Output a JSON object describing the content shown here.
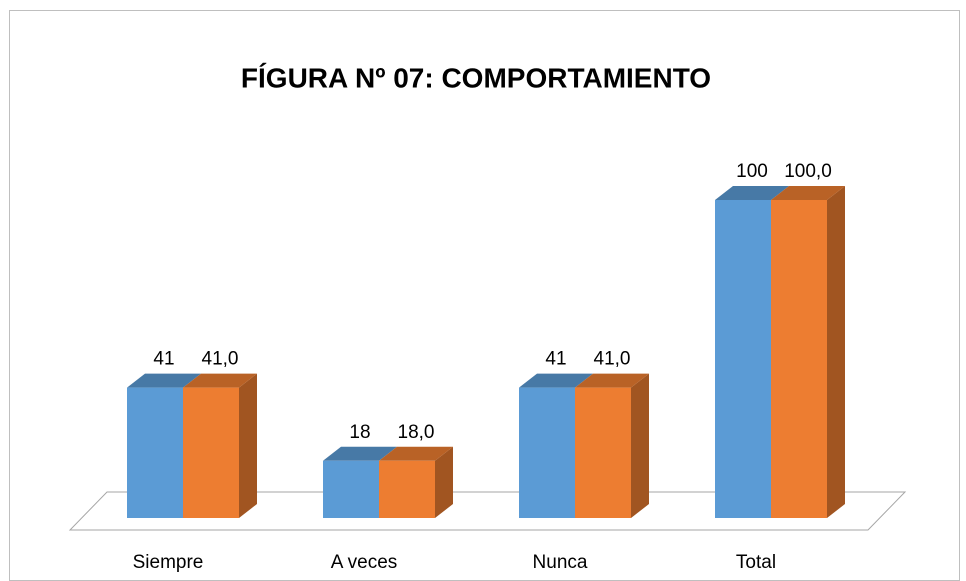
{
  "chart_data": {
    "type": "bar3d",
    "title": "FÍGURA Nº 07: COMPORTAMIENTO",
    "categories": [
      "Siempre",
      "A veces",
      "Nunca",
      "Total"
    ],
    "series": [
      {
        "color": "#5b9bd5",
        "values": [
          41,
          18,
          41,
          100
        ]
      },
      {
        "color": "#ed7d31",
        "values": [
          41.0,
          18.0,
          41.0,
          100.0
        ],
        "value_labels": [
          "41,0",
          "18,0",
          "41,0",
          "100,0"
        ]
      }
    ]
  }
}
